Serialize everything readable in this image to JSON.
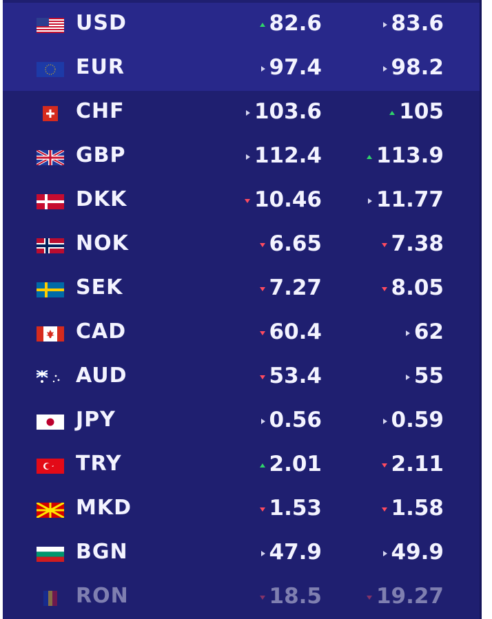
{
  "rows": [
    {
      "code": "USD",
      "buy": "82.6",
      "buy_trend": "up",
      "sell": "83.6",
      "sell_trend": "flat",
      "flag": "us-flag-icon",
      "highlight": true
    },
    {
      "code": "EUR",
      "buy": "97.4",
      "buy_trend": "flat",
      "sell": "98.2",
      "sell_trend": "flat",
      "flag": "eu-flag-icon",
      "highlight": true
    },
    {
      "code": "CHF",
      "buy": "103.6",
      "buy_trend": "flat",
      "sell": "105",
      "sell_trend": "up",
      "flag": "ch-flag-icon",
      "highlight": false
    },
    {
      "code": "GBP",
      "buy": "112.4",
      "buy_trend": "flat",
      "sell": "113.9",
      "sell_trend": "up",
      "flag": "gb-flag-icon",
      "highlight": false
    },
    {
      "code": "DKK",
      "buy": "10.46",
      "buy_trend": "down",
      "sell": "11.77",
      "sell_trend": "flat",
      "flag": "dk-flag-icon",
      "highlight": false
    },
    {
      "code": "NOK",
      "buy": "6.65",
      "buy_trend": "down",
      "sell": "7.38",
      "sell_trend": "down",
      "flag": "no-flag-icon",
      "highlight": false
    },
    {
      "code": "SEK",
      "buy": "7.27",
      "buy_trend": "down",
      "sell": "8.05",
      "sell_trend": "down",
      "flag": "se-flag-icon",
      "highlight": false
    },
    {
      "code": "CAD",
      "buy": "60.4",
      "buy_trend": "down",
      "sell": "62",
      "sell_trend": "flat",
      "flag": "ca-flag-icon",
      "highlight": false
    },
    {
      "code": "AUD",
      "buy": "53.4",
      "buy_trend": "down",
      "sell": "55",
      "sell_trend": "flat",
      "flag": "au-flag-icon",
      "highlight": false
    },
    {
      "code": "JPY",
      "buy": "0.56",
      "buy_trend": "flat",
      "sell": "0.59",
      "sell_trend": "flat",
      "flag": "jp-flag-icon",
      "highlight": false
    },
    {
      "code": "TRY",
      "buy": "2.01",
      "buy_trend": "up",
      "sell": "2.11",
      "sell_trend": "down",
      "flag": "tr-flag-icon",
      "highlight": false
    },
    {
      "code": "MKD",
      "buy": "1.53",
      "buy_trend": "down",
      "sell": "1.58",
      "sell_trend": "down",
      "flag": "mk-flag-icon",
      "highlight": false
    },
    {
      "code": "BGN",
      "buy": "47.9",
      "buy_trend": "flat",
      "sell": "49.9",
      "sell_trend": "flat",
      "flag": "bg-flag-icon",
      "highlight": false
    },
    {
      "code": "RON",
      "buy": "18.5",
      "buy_trend": "down",
      "sell": "19.27",
      "sell_trend": "down",
      "flag": "ro-flag-icon",
      "highlight": false,
      "faded": true
    }
  ],
  "colors": {
    "background": "#1f1f70",
    "highlight": "#28288a",
    "text": "#f3f3ff",
    "up": "#2fd36a",
    "down": "#ff4b5f",
    "flat": "#d4d4ef"
  }
}
